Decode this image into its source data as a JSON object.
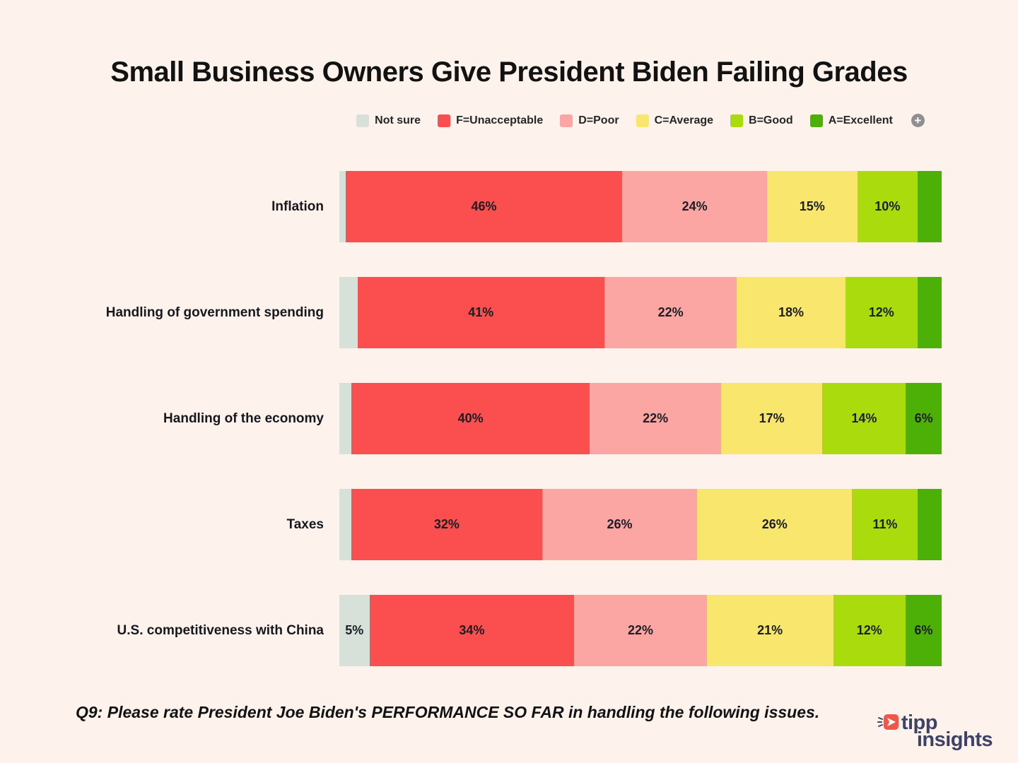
{
  "title": "Small Business Owners Give President Biden Failing Grades",
  "legend": {
    "items": [
      {
        "label": "Not sure",
        "color": "#D8E0DA"
      },
      {
        "label": "F=Unacceptable",
        "color": "#FB4E4E"
      },
      {
        "label": "D=Poor",
        "color": "#FCA6A4"
      },
      {
        "label": "C=Average",
        "color": "#F9E76D"
      },
      {
        "label": "B=Good",
        "color": "#A9DB0D"
      },
      {
        "label": "A=Excellent",
        "color": "#4CB007"
      }
    ],
    "more_button_glyph": "+"
  },
  "chart_data": {
    "type": "bar",
    "stacked": true,
    "orientation": "horizontal",
    "title": "Small Business Owners Give President Biden Failing Grades",
    "xlabel": "",
    "ylabel": "",
    "xlim": [
      0,
      100
    ],
    "value_suffix": "%",
    "grid": false,
    "legend_position": "top",
    "categories": [
      "Inflation",
      "Handling of government spending",
      "Handling of the economy",
      "Taxes",
      "U.S. competitiveness with China"
    ],
    "series": [
      {
        "name": "Not sure",
        "color": "#D8E0DA",
        "values": [
          1,
          3,
          2,
          2,
          5
        ],
        "labels": [
          "",
          "",
          "",
          "",
          "5%"
        ]
      },
      {
        "name": "F=Unacceptable",
        "color": "#FB4E4E",
        "values": [
          46,
          41,
          40,
          32,
          34
        ],
        "labels": [
          "46%",
          "41%",
          "40%",
          "32%",
          "34%"
        ]
      },
      {
        "name": "D=Poor",
        "color": "#FCA6A4",
        "values": [
          24,
          22,
          22,
          26,
          22
        ],
        "labels": [
          "24%",
          "22%",
          "22%",
          "26%",
          "22%"
        ]
      },
      {
        "name": "C=Average",
        "color": "#F9E76D",
        "values": [
          15,
          18,
          17,
          26,
          21
        ],
        "labels": [
          "15%",
          "18%",
          "17%",
          "26%",
          "21%"
        ]
      },
      {
        "name": "B=Good",
        "color": "#A9DB0D",
        "values": [
          10,
          12,
          14,
          11,
          12
        ],
        "labels": [
          "10%",
          "12%",
          "14%",
          "11%",
          "12%"
        ]
      },
      {
        "name": "A=Excellent",
        "color": "#4CB007",
        "values": [
          4,
          4,
          6,
          4,
          6
        ],
        "labels": [
          "",
          "",
          "6%",
          "",
          "6%"
        ]
      }
    ]
  },
  "footer": {
    "question": "Q9: Please rate President Joe Biden's PERFORMANCE SO FAR in handling the following issues."
  },
  "logo": {
    "line1": "tipp",
    "line2": "insights",
    "navy": "#3D4266",
    "red": "#F0564A"
  }
}
